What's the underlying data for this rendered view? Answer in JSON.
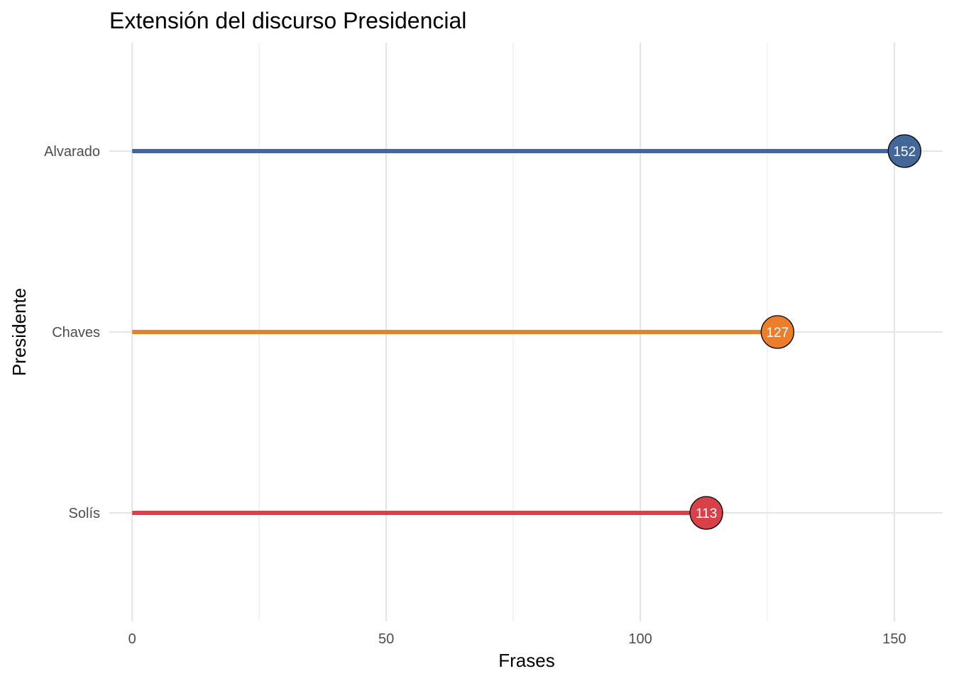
{
  "chart_data": {
    "type": "lollipop",
    "title": "Extensión del discurso Presidencial",
    "xlabel": "Frases",
    "ylabel": "Presidente",
    "xlim": [
      -4.5,
      159.5
    ],
    "x_ticks": [
      0,
      50,
      100,
      150
    ],
    "x_tick_labels": [
      "0",
      "50",
      "100",
      "150"
    ],
    "grid": true,
    "legend": "none",
    "categories": [
      "Alvarado",
      "Chaves",
      "Solís"
    ],
    "values": [
      152,
      127,
      113
    ],
    "value_labels": [
      "152",
      "127",
      "113"
    ],
    "colors": [
      "#44679a",
      "#ec7d2a",
      "#d94149"
    ]
  }
}
